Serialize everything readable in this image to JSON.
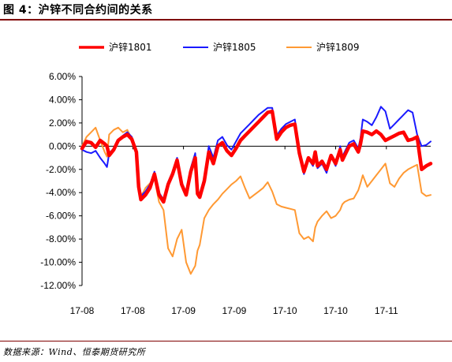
{
  "header": {
    "title": "图 4：沪锌不同合约间的关系"
  },
  "footer": {
    "source": "数据来源：Wind、恒泰期货研究所"
  },
  "chart_data": {
    "type": "line",
    "title": "",
    "xlabel": "",
    "ylabel": "",
    "ylim": [
      -12,
      6
    ],
    "ytick_step": 2,
    "y_tick_labels": [
      "6.00%",
      "4.00%",
      "2.00%",
      "0.00%",
      "-2.00%",
      "-4.00%",
      "-6.00%",
      "-8.00%",
      "-10.00%",
      "-12.00%"
    ],
    "x_tick_labels": [
      "17-08",
      "17-08",
      "17-09",
      "17-09",
      "17-10",
      "17-10",
      "17-11"
    ],
    "grid": false,
    "legend_position": "top",
    "x": [
      0,
      2,
      4,
      6,
      8,
      10,
      11,
      12,
      14,
      16,
      18,
      20,
      22,
      24,
      25,
      26,
      27,
      28,
      30,
      32,
      34,
      36,
      38,
      40,
      42,
      44,
      46,
      48,
      50,
      51,
      52,
      54,
      56,
      58,
      60,
      62,
      64,
      66,
      68,
      70,
      72,
      74,
      76,
      78,
      80,
      82,
      84,
      86,
      88,
      90,
      92,
      94,
      96,
      98,
      100,
      102,
      103,
      104,
      106,
      108,
      110,
      112,
      114,
      115,
      116,
      118,
      120,
      122,
      123,
      124,
      126,
      128,
      130,
      132,
      134,
      136,
      138,
      140,
      142,
      144,
      146,
      148,
      150,
      152,
      154
    ],
    "series": [
      {
        "name": "沪锌1801",
        "color": "#ff0000",
        "width": 4.5,
        "values": [
          -0.2,
          0.4,
          0.3,
          -0.1,
          0.5,
          0.2,
          0.0,
          -0.8,
          -0.3,
          0.5,
          0.8,
          1.0,
          0.6,
          -0.5,
          -3.5,
          -4.6,
          -4.4,
          -4.2,
          -3.6,
          -2.4,
          -4.2,
          -4.8,
          -3.3,
          -2.4,
          -1.2,
          -3.3,
          -4.2,
          -2.2,
          -1.0,
          -4.1,
          -4.4,
          -3.0,
          -0.5,
          -1.5,
          0.0,
          0.3,
          -0.4,
          -0.8,
          -0.2,
          0.5,
          0.9,
          1.3,
          1.7,
          2.1,
          2.5,
          2.9,
          3.0,
          0.6,
          1.2,
          1.6,
          1.8,
          1.9,
          -0.6,
          -2.2,
          -1.0,
          -1.5,
          -0.5,
          -1.7,
          -1.3,
          -2.0,
          -0.8,
          -1.5,
          -0.3,
          -1.2,
          -0.8,
          0.0,
          0.2,
          -0.5,
          0.2,
          1.3,
          1.2,
          1.0,
          1.3,
          1.0,
          0.5,
          0.7,
          0.9,
          1.1,
          1.2,
          0.5,
          0.6,
          0.8,
          -2.0,
          -1.7,
          -1.5
        ]
      },
      {
        "name": "沪锌1805",
        "color": "#1a1aff",
        "width": 2,
        "values": [
          -0.3,
          -0.5,
          -0.6,
          -0.4,
          -1.0,
          -1.5,
          -1.8,
          -0.6,
          -0.2,
          0.5,
          0.9,
          1.2,
          0.8,
          -0.4,
          -3.3,
          -4.4,
          -4.1,
          -3.9,
          -3.3,
          -2.2,
          -4.0,
          -4.6,
          -3.1,
          -2.2,
          -1.0,
          -3.1,
          -4.0,
          -1.9,
          -0.6,
          -3.8,
          -4.1,
          -2.7,
          0.0,
          -1.0,
          0.5,
          0.8,
          0.1,
          -0.3,
          0.4,
          1.1,
          1.5,
          1.9,
          2.3,
          2.7,
          3.0,
          3.3,
          3.3,
          0.9,
          1.5,
          1.9,
          2.1,
          2.3,
          -0.3,
          -2.4,
          -1.1,
          -1.7,
          -0.7,
          -1.9,
          -1.5,
          -2.3,
          -0.9,
          -1.7,
          0.0,
          -0.9,
          -0.5,
          0.3,
          0.5,
          -0.2,
          0.7,
          2.3,
          2.1,
          1.8,
          2.5,
          3.4,
          3.0,
          1.5,
          1.9,
          2.3,
          2.7,
          3.1,
          2.9,
          1.0,
          0.0,
          0.1,
          0.4
        ]
      },
      {
        "name": "沪锌1809",
        "color": "#ff9933",
        "width": 2,
        "values": [
          0.0,
          0.8,
          1.2,
          1.6,
          0.5,
          -0.5,
          -0.9,
          1.0,
          1.4,
          1.6,
          1.2,
          1.4,
          0.6,
          -0.4,
          -3.5,
          -4.2,
          -4.0,
          -3.6,
          -3.2,
          -2.8,
          -4.8,
          -5.5,
          -8.8,
          -9.5,
          -8.0,
          -7.2,
          -10.0,
          -11.0,
          -10.3,
          -9.0,
          -8.5,
          -6.2,
          -5.5,
          -5.0,
          -4.6,
          -4.1,
          -3.7,
          -3.3,
          -3.0,
          -2.6,
          -3.6,
          -4.5,
          -4.2,
          -3.9,
          -3.6,
          -3.1,
          -3.9,
          -5.0,
          -5.2,
          -5.3,
          -5.4,
          -5.5,
          -7.5,
          -8.0,
          -7.8,
          -8.2,
          -7.0,
          -6.5,
          -6.0,
          -5.6,
          -6.2,
          -6.0,
          -5.5,
          -5.0,
          -4.8,
          -4.6,
          -4.5,
          -3.8,
          -3.2,
          -2.5,
          -3.5,
          -3.0,
          -2.5,
          -2.0,
          -1.5,
          -3.2,
          -3.5,
          -2.8,
          -2.3,
          -2.0,
          -1.8,
          -1.6,
          -4.0,
          -4.3,
          -4.2
        ]
      }
    ]
  }
}
